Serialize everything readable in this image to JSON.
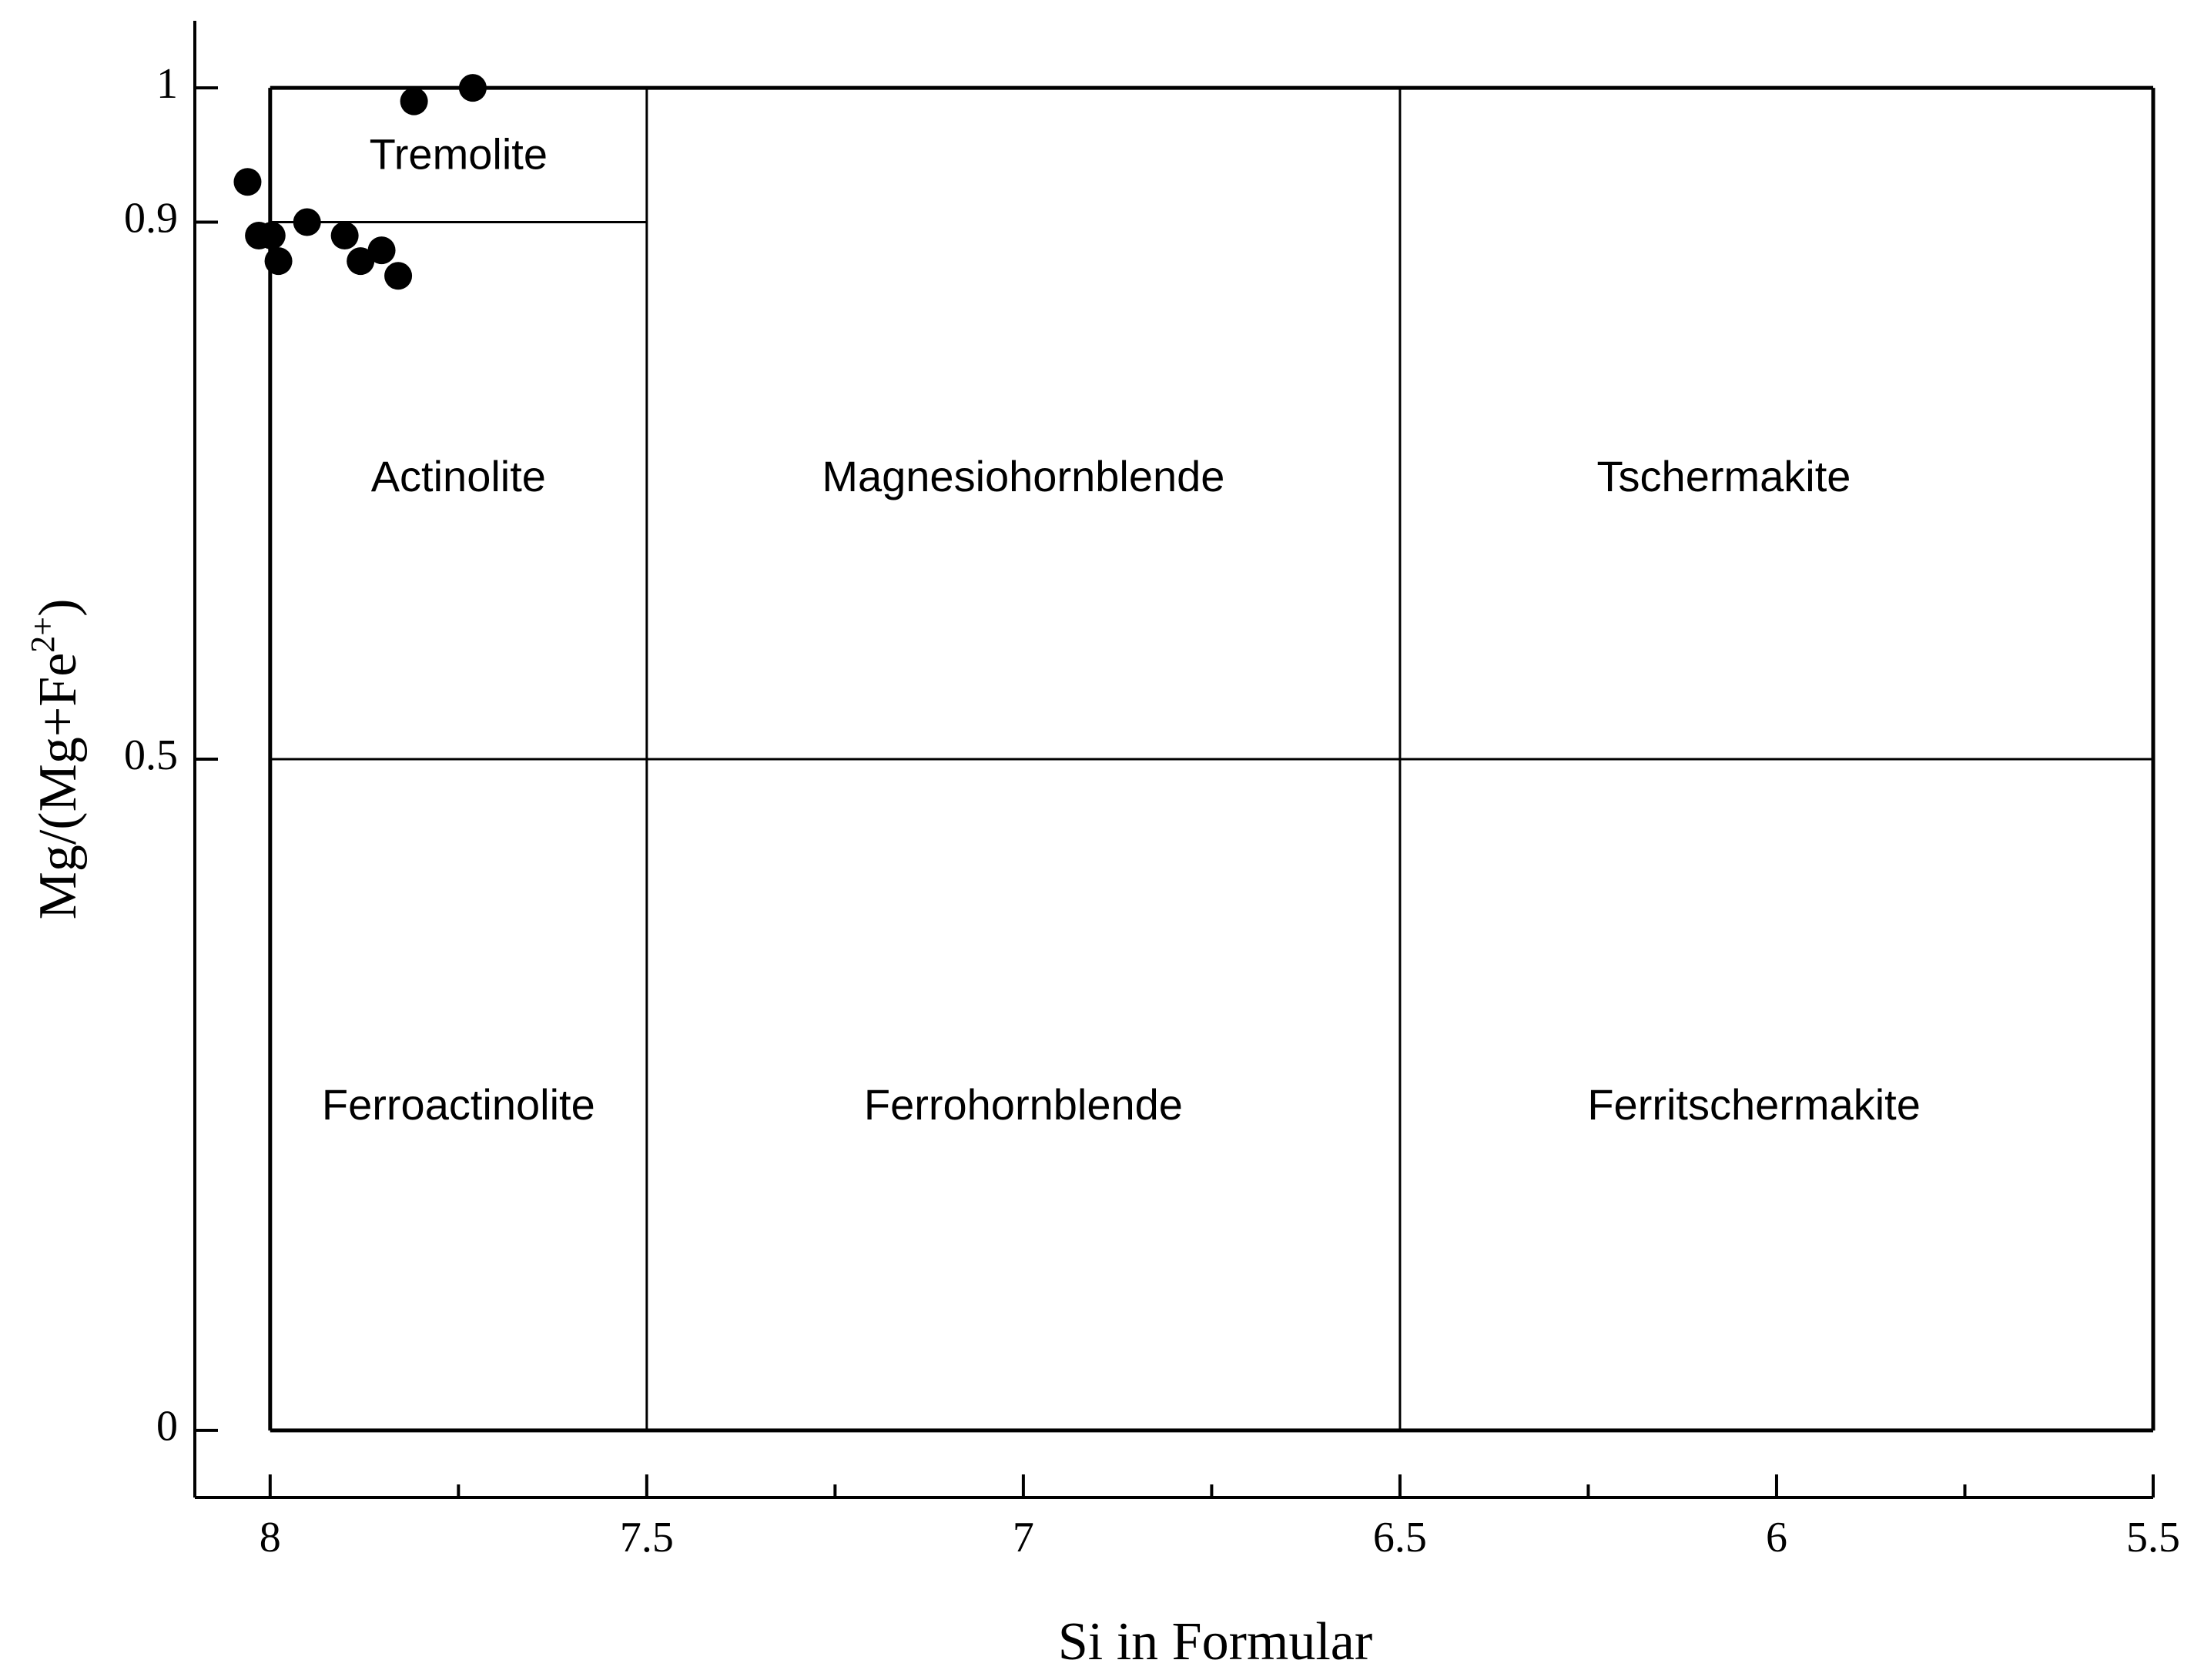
{
  "chart_data": {
    "type": "scatter",
    "xlabel": "Si in Formular",
    "ylabel": "Mg/(Mg+Fe",
    "ylabel_sup": "2+",
    "ylabel_end": ")",
    "xlim": [
      8.1,
      5.5
    ],
    "ylim": [
      -0.05,
      1.05
    ],
    "xticks": [
      8,
      7.5,
      7,
      6.5,
      6,
      5.5
    ],
    "xminorticks": [
      7.75,
      7.25,
      6.75,
      6.25,
      5.75
    ],
    "yticks": [
      0,
      0.5,
      0.9,
      1
    ],
    "field_boundaries": [
      {
        "x": [
          8,
          5.5
        ],
        "y": [
          1,
          1
        ]
      },
      {
        "x": [
          8,
          5.5
        ],
        "y": [
          0,
          0
        ]
      },
      {
        "x": [
          8,
          8
        ],
        "y": [
          0,
          1
        ]
      },
      {
        "x": [
          5.5,
          5.5
        ],
        "y": [
          0,
          1
        ]
      },
      {
        "x": [
          7.5,
          7.5
        ],
        "y": [
          0,
          1
        ]
      },
      {
        "x": [
          6.5,
          6.5
        ],
        "y": [
          0,
          1
        ]
      },
      {
        "x": [
          8,
          5.5
        ],
        "y": [
          0.5,
          0.5
        ]
      },
      {
        "x": [
          8,
          7.5
        ],
        "y": [
          0.9,
          0.9
        ]
      }
    ],
    "regions": [
      "Tremolite",
      "Actinolite",
      "Magnesiohornblende",
      "Tschermakite",
      "Ferroactinolite",
      "Ferrohornblende",
      "Ferritschermakite"
    ],
    "series": [
      {
        "color": "#000000",
        "x": [
          8.03,
          8.015,
          7.998,
          7.989,
          7.951,
          7.901,
          7.88,
          7.852,
          7.83,
          7.809,
          7.731
        ],
        "values": [
          0.93,
          0.89,
          0.89,
          0.871,
          0.9,
          0.89,
          0.871,
          0.879,
          0.86,
          0.99,
          1.0
        ]
      }
    ]
  }
}
